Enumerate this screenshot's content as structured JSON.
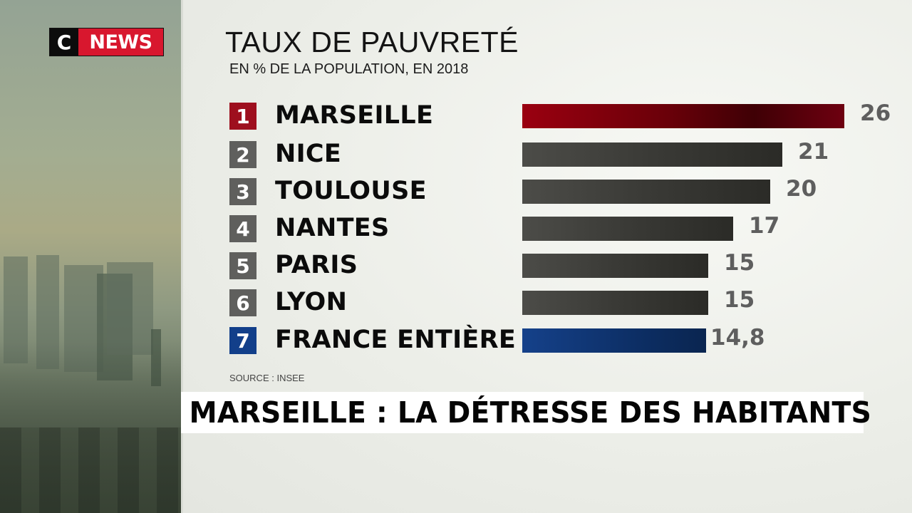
{
  "channel": {
    "logo_c": "C",
    "logo_news": "NEWS",
    "logo_colors": {
      "c_bg": "#0c0c0c",
      "news_bg": "#d8172e"
    }
  },
  "header": {
    "title": "TAUX DE PAUVRETÉ",
    "subtitle": "EN % DE LA POPULATION, EN 2018"
  },
  "rows": [
    {
      "rank": "1",
      "city": "MARSEILLE",
      "value": 26,
      "label": "26",
      "rank_color": "#9e0f1e",
      "bar_style": "red"
    },
    {
      "rank": "2",
      "city": "NICE",
      "value": 21,
      "label": "21",
      "rank_color": "#5f5f5d",
      "bar_style": "gray"
    },
    {
      "rank": "3",
      "city": "TOULOUSE",
      "value": 20,
      "label": "20",
      "rank_color": "#5f5f5d",
      "bar_style": "gray"
    },
    {
      "rank": "4",
      "city": "NANTES",
      "value": 17,
      "label": "17",
      "rank_color": "#5f5f5d",
      "bar_style": "gray"
    },
    {
      "rank": "5",
      "city": "PARIS",
      "value": 15,
      "label": "15",
      "rank_color": "#5f5f5d",
      "bar_style": "gray"
    },
    {
      "rank": "6",
      "city": "LYON",
      "value": 15,
      "label": "15",
      "rank_color": "#5f5f5d",
      "bar_style": "gray"
    },
    {
      "rank": "7",
      "city": "FRANCE ENTIÈRE",
      "value": 14.8,
      "label": "14,8",
      "rank_color": "#123f8a",
      "bar_style": "blue"
    }
  ],
  "source": "SOURCE : INSEE",
  "headline": "MARSEILLE : LA DÉTRESSE DES HABITANTS",
  "chart_data": {
    "type": "bar",
    "orientation": "horizontal",
    "title": "TAUX DE PAUVRETÉ",
    "subtitle": "EN % DE LA POPULATION, EN 2018",
    "categories": [
      "MARSEILLE",
      "NICE",
      "TOULOUSE",
      "NANTES",
      "PARIS",
      "LYON",
      "FRANCE ENTIÈRE"
    ],
    "values": [
      26,
      21,
      20,
      17,
      15,
      15,
      14.8
    ],
    "value_labels": [
      "26",
      "21",
      "20",
      "17",
      "15",
      "15",
      "14,8"
    ],
    "ranks": [
      1,
      2,
      3,
      4,
      5,
      6,
      7
    ],
    "colors": [
      "#8e0a14",
      "#3a3a37",
      "#3a3a37",
      "#3a3a37",
      "#343431",
      "#343431",
      "#0f3a78"
    ],
    "xlabel": "",
    "ylabel": "% de la population",
    "grid": false,
    "legend": null,
    "source": "SOURCE : INSEE"
  }
}
